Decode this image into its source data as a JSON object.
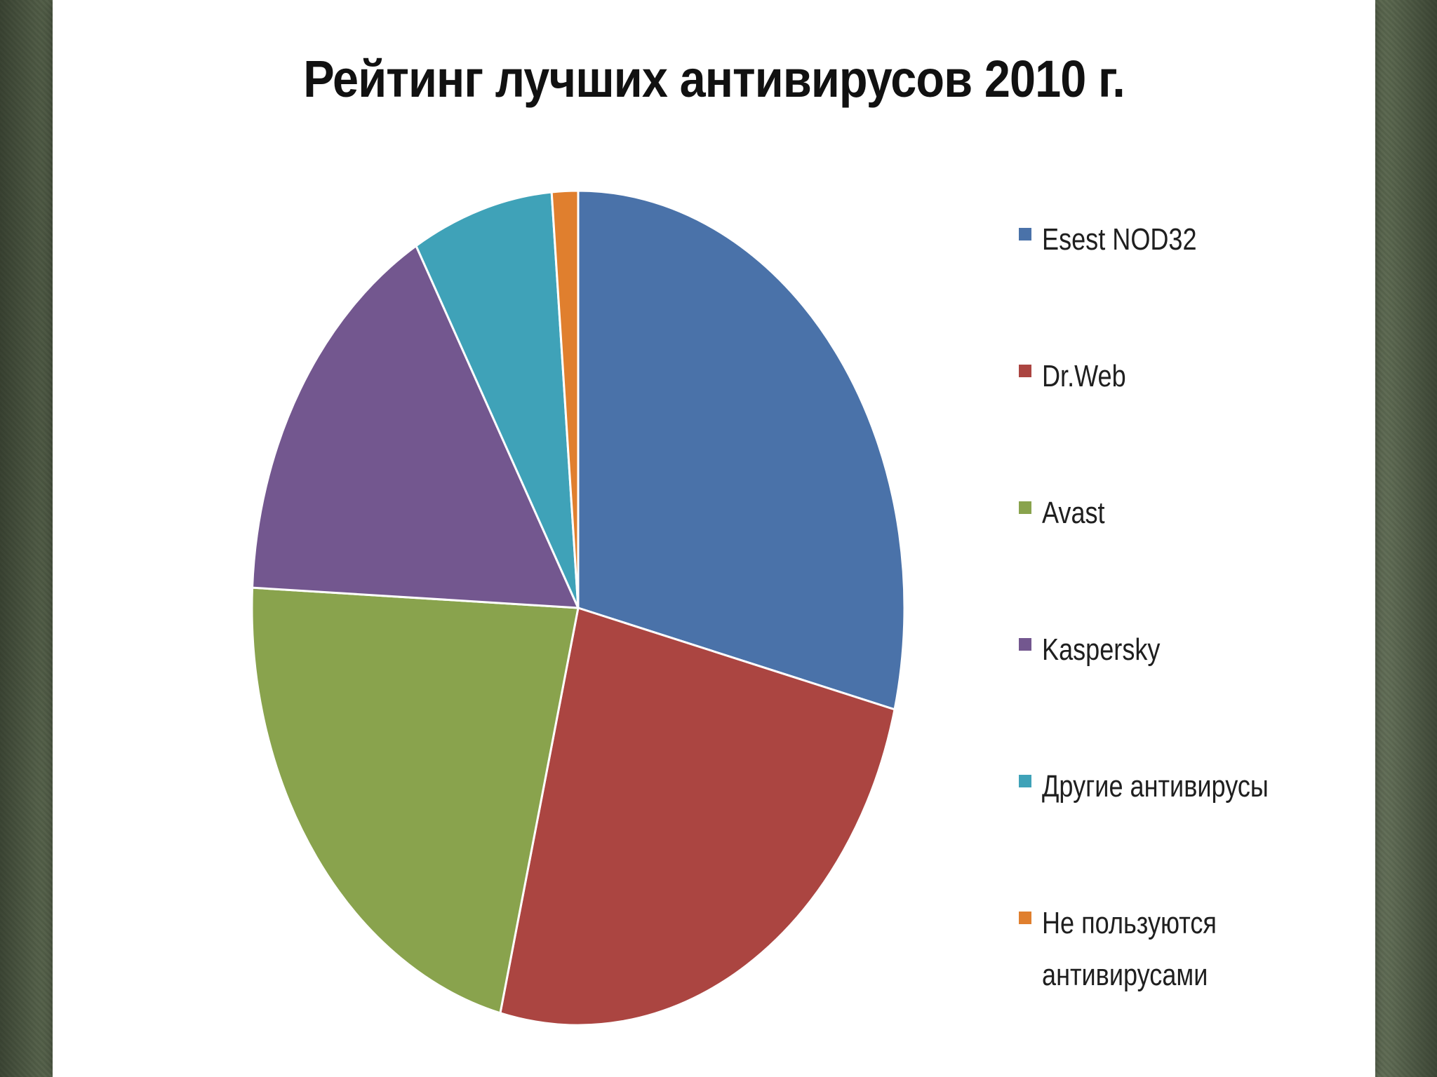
{
  "chart_data": {
    "type": "pie",
    "title": "Рейтинг лучших антивирусов 2010 г.",
    "legend_position": "right",
    "slices": [
      {
        "label": "Esest NOD32",
        "value": 29,
        "color": "#4a72a9"
      },
      {
        "label": "Dr.Web",
        "value": 25,
        "color": "#ab4541"
      },
      {
        "label": "Avast",
        "value": 22,
        "color": "#89a34d"
      },
      {
        "label": "Kaspersky",
        "value": 16,
        "color": "#73578f"
      },
      {
        "label": "Другие антивирусы",
        "value": 7,
        "color": "#3fa2b8"
      },
      {
        "label": "Не пользуются\nантивирусами",
        "value": 1.3,
        "color": "#e07f2e"
      }
    ]
  }
}
